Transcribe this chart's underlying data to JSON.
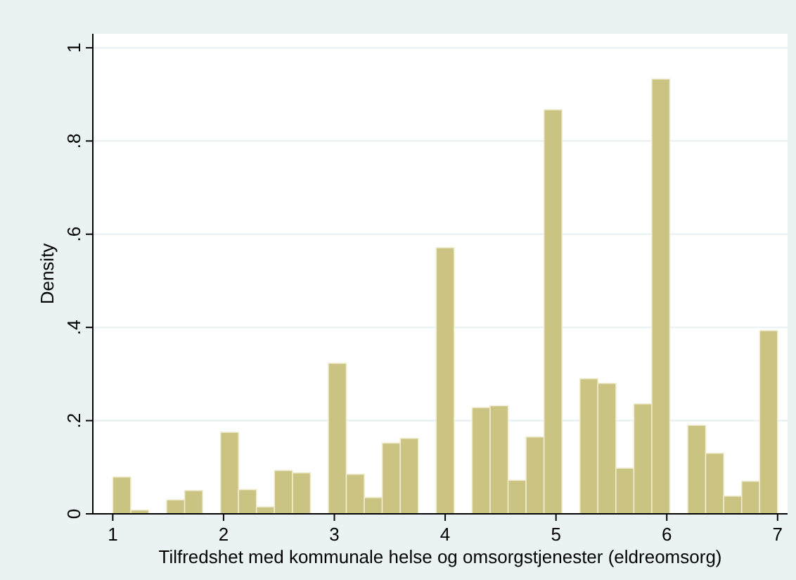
{
  "chart_data": {
    "type": "histogram",
    "xlabel": "Tilfredshet med kommunale helse og omsorgstjenester (eldreomsorg)",
    "ylabel": "Density",
    "bins": [
      1.0,
      1.162,
      1.324,
      1.486,
      1.649,
      1.811,
      1.973,
      2.135,
      2.297,
      2.459,
      2.622,
      2.784,
      2.946,
      3.108,
      3.27,
      3.432,
      3.595,
      3.757,
      3.919,
      4.081,
      4.243,
      4.405,
      4.568,
      4.73,
      4.892,
      5.054,
      5.216,
      5.378,
      5.541,
      5.703,
      5.865,
      6.027,
      6.189,
      6.351,
      6.514,
      6.676,
      6.838,
      7.0
    ],
    "values": [
      0.079,
      0.008,
      0,
      0.03,
      0.05,
      0,
      0.175,
      0.052,
      0.015,
      0.093,
      0.088,
      0,
      0.323,
      0.085,
      0.035,
      0.152,
      0.162,
      0,
      0.571,
      0,
      0.228,
      0.232,
      0.072,
      0.165,
      0.867,
      0,
      0.29,
      0.28,
      0.098,
      0.236,
      0.933,
      0,
      0.19,
      0.13,
      0.038,
      0.07,
      0.393
    ],
    "color": "#cbc381",
    "xlim": [
      0.82,
      7.09
    ],
    "xticks": [
      1,
      2,
      3,
      4,
      5,
      6,
      7
    ],
    "ylim": [
      0,
      1.03
    ],
    "yticks": [
      0,
      {
        "value": 0.2,
        "label": ".2"
      },
      {
        "value": 0.4,
        "label": ".4"
      },
      {
        "value": 0.6,
        "label": ".6"
      },
      {
        "value": 0.8,
        "label": ".8"
      },
      1
    ],
    "grid": "y"
  }
}
